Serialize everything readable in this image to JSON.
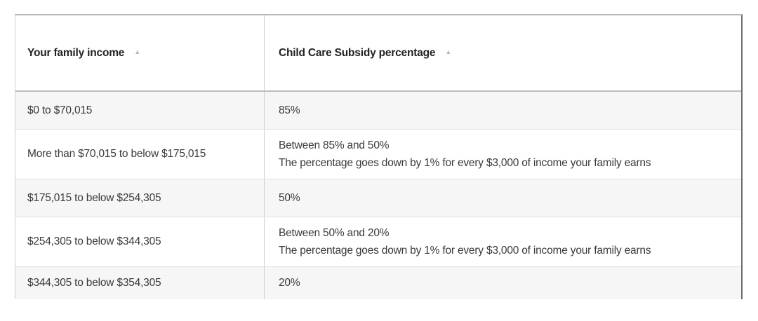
{
  "table": {
    "headers": [
      {
        "label": "Your family income",
        "sort_icon": "sort-up-icon"
      },
      {
        "label": "Child Care Subsidy percentage",
        "sort_icon": "sort-up-icon"
      }
    ],
    "rows": [
      {
        "income": "$0 to $70,015",
        "subsidy": [
          "85%"
        ]
      },
      {
        "income": "More than $70,015 to below $175,015",
        "subsidy": [
          "Between 85% and 50%",
          "The percentage goes down by 1% for every $3,000 of income your family earns"
        ]
      },
      {
        "income": "$175,015 to below $254,305",
        "subsidy": [
          "50%"
        ]
      },
      {
        "income": "$254,305 to below $344,305",
        "subsidy": [
          "Between 50% and 20%",
          "The percentage goes down by 1% for every $3,000 of income your family earns"
        ]
      },
      {
        "income": "$344,305 to below $354,305",
        "subsidy": [
          "20%"
        ]
      }
    ]
  },
  "colors": {
    "header_text": "#222222",
    "body_text": "#3a3a3a",
    "row_alt_bg": "#f6f6f6",
    "border": "#cfcfcf"
  }
}
